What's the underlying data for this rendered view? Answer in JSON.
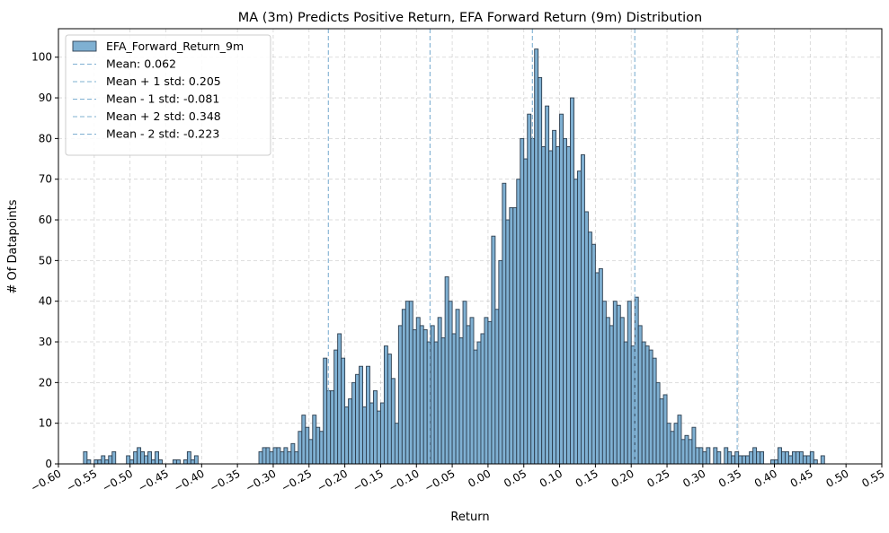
{
  "chart_data": {
    "type": "bar",
    "title": "MA (3m) Predicts Positive Return, EFA Forward Return (9m) Distribution",
    "xlabel": "Return",
    "ylabel": "# Of Datapoints",
    "xlim": [
      -0.6,
      0.55
    ],
    "ylim": [
      0,
      107
    ],
    "x_ticks": [
      "−0.60",
      "−0.55",
      "−0.50",
      "−0.45",
      "−0.40",
      "−0.35",
      "−0.30",
      "−0.25",
      "−0.20",
      "−0.15",
      "−0.10",
      "−0.05",
      "0.00",
      "0.05",
      "0.10",
      "0.15",
      "0.20",
      "0.25",
      "0.30",
      "0.35",
      "0.40",
      "0.45",
      "0.50",
      "0.55"
    ],
    "x_tick_values": [
      -0.6,
      -0.55,
      -0.5,
      -0.45,
      -0.4,
      -0.35,
      -0.3,
      -0.25,
      -0.2,
      -0.15,
      -0.1,
      -0.05,
      0,
      0.05,
      0.1,
      0.15,
      0.2,
      0.25,
      0.3,
      0.35,
      0.4,
      0.45,
      0.5,
      0.55
    ],
    "y_ticks": [
      0,
      10,
      20,
      30,
      40,
      50,
      60,
      70,
      80,
      90,
      100
    ],
    "grid": true,
    "legend_position": "top-left",
    "bar_color": "#7fb0d2",
    "bar_edge_color": "#2e3f50",
    "line_color": "#7fb0d2",
    "bin_start": -0.565,
    "bin_width": 0.005,
    "counts": [
      3,
      1,
      0,
      1,
      1,
      2,
      1,
      2,
      3,
      0,
      0,
      0,
      2,
      1,
      3,
      4,
      3,
      2,
      3,
      1,
      3,
      1,
      0,
      0,
      0,
      1,
      1,
      0,
      1,
      3,
      1,
      2,
      0,
      0,
      0,
      0,
      0,
      0,
      0,
      0,
      0,
      0,
      0,
      0,
      0,
      0,
      0,
      0,
      0,
      3,
      4,
      4,
      3,
      4,
      4,
      3,
      4,
      3,
      5,
      3,
      8,
      12,
      9,
      6,
      12,
      9,
      8,
      26,
      18,
      18,
      28,
      32,
      26,
      14,
      16,
      20,
      22,
      24,
      14,
      24,
      15,
      18,
      13,
      15,
      29,
      27,
      21,
      10,
      34,
      38,
      40,
      40,
      33,
      36,
      34,
      33,
      30,
      34,
      30,
      36,
      31,
      46,
      40,
      32,
      38,
      31,
      40,
      34,
      36,
      28,
      30,
      32,
      36,
      35,
      56,
      38,
      50,
      69,
      60,
      63,
      63,
      70,
      80,
      75,
      86,
      80,
      102,
      95,
      78,
      88,
      77,
      82,
      78,
      86,
      80,
      78,
      90,
      70,
      72,
      76,
      62,
      57,
      54,
      47,
      48,
      40,
      36,
      34,
      40,
      39,
      36,
      30,
      40,
      29,
      41,
      34,
      30,
      29,
      28,
      26,
      20,
      16,
      17,
      10,
      8,
      10,
      12,
      6,
      7,
      6,
      9,
      4,
      4,
      3,
      4,
      0,
      4,
      3,
      0,
      4,
      3,
      2,
      3,
      2,
      2,
      2,
      3,
      4,
      3,
      3,
      0,
      0,
      1,
      1,
      4,
      3,
      3,
      2,
      3,
      3,
      3,
      2,
      2,
      3,
      1,
      0,
      2
    ],
    "series": [
      {
        "name": "EFA_Forward_Return_9m",
        "kind": "histogram"
      }
    ],
    "reference_lines": [
      {
        "name": "Mean: 0.062",
        "x": 0.062
      },
      {
        "name": "Mean + 1 std: 0.205",
        "x": 0.205
      },
      {
        "name": "Mean - 1 std: -0.081",
        "x": -0.081
      },
      {
        "name": "Mean + 2 std: 0.348",
        "x": 0.348
      },
      {
        "name": "Mean - 2 std: -0.223",
        "x": -0.223
      }
    ]
  }
}
